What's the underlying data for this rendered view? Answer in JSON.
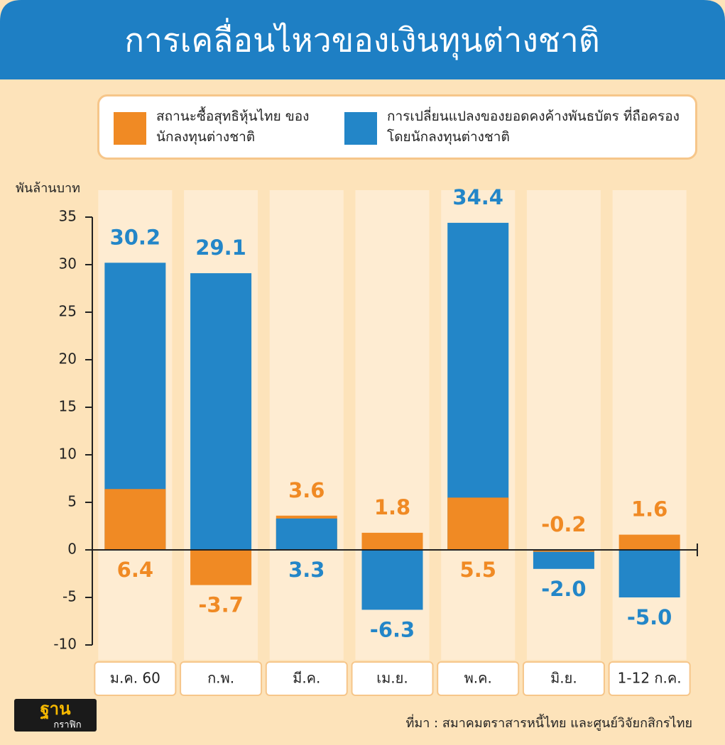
{
  "chart_data": {
    "type": "bar",
    "title": "การเคลื่อนไหวของเงินทุนต่างชาติ",
    "y_axis_label": "พันล้านบาท",
    "categories": [
      "ม.ค. 60",
      "ก.พ.",
      "มี.ค.",
      "เม.ย.",
      "พ.ค.",
      "มิ.ย.",
      "1-12 ก.ค."
    ],
    "series": [
      {
        "name": "สถานะซื้อสุทธิหุ้นไทย ของนักลงทุนต่างชาติ",
        "color": "#f08a24",
        "values": [
          6.4,
          -3.7,
          3.6,
          1.8,
          5.5,
          -0.2,
          1.6
        ],
        "value_labels": [
          "6.4",
          "-3.7",
          "3.6",
          "1.8",
          "5.5",
          "-0.2",
          "1.6"
        ]
      },
      {
        "name": "การเปลี่ยนแปลงของยอดคงค้างพันธบัตร ที่ถือครองโดยนักลงทุนต่างชาติ",
        "color": "#2386c8",
        "values": [
          30.2,
          29.1,
          3.3,
          -6.3,
          34.4,
          -2.0,
          -5.0
        ],
        "value_labels": [
          "30.2",
          "29.1",
          "3.3",
          "-6.3",
          "34.4",
          "-2.0",
          "-5.0"
        ]
      }
    ],
    "ylim": [
      -10,
      35
    ],
    "yticks": [
      -10,
      -5,
      0,
      5,
      10,
      15,
      20,
      25,
      30,
      35
    ],
    "source": "ที่มา : สมาคมตราสารหนี้ไทย และศูนย์วิจัยกสิกรไทย",
    "logo": [
      "ฐาน",
      "กราฟิก"
    ]
  }
}
